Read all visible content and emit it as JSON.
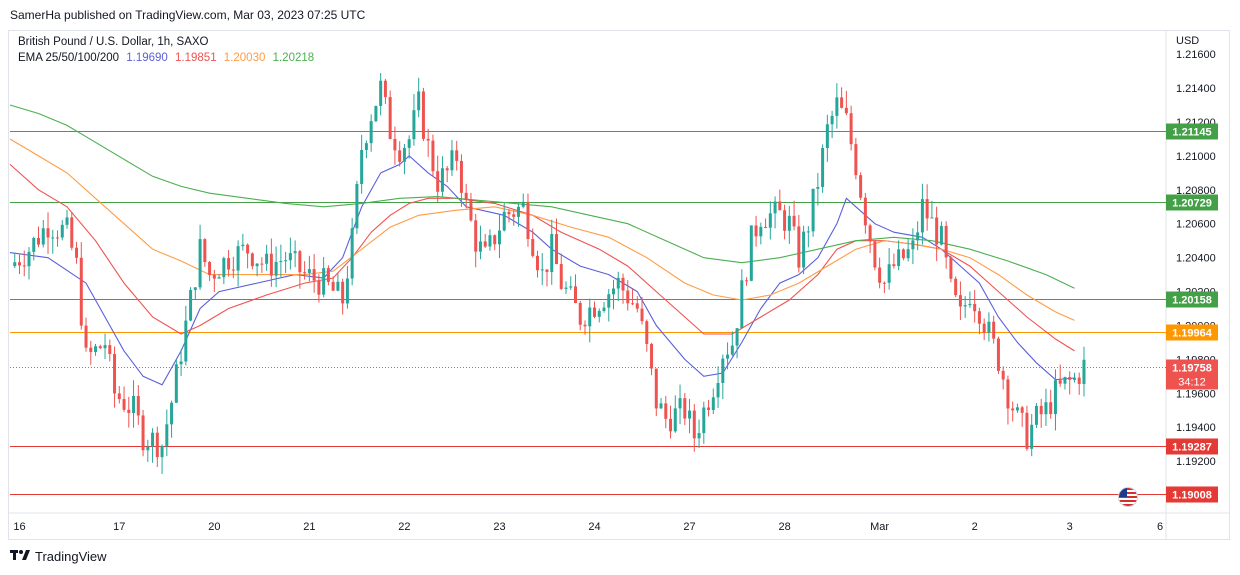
{
  "header": {
    "published": "SamerHa published on TradingView.com, Mar 03, 2023 07:25 UTC"
  },
  "legend": {
    "symbol": "British Pound / U.S. Dollar, 1h, SAXO",
    "ema_label": "EMA 25/50/100/200",
    "ema_values": [
      "1.19690",
      "1.19851",
      "1.20030",
      "1.20218"
    ]
  },
  "colors": {
    "up": "#26a69a",
    "down": "#ef5350",
    "ema25": "#5b5fdc",
    "ema50": "#ef5350",
    "ema100": "#ff9c45",
    "ema200": "#4caf50",
    "line_green": "#43a047",
    "line_orange": "#ff9800",
    "line_red": "#e53935",
    "text": "#131722"
  },
  "axis": {
    "currency": "USD",
    "badge_countdown": "34:12"
  },
  "footer": {
    "brand": "TradingView"
  },
  "chart_data": {
    "type": "candlestick",
    "title": "British Pound / U.S. Dollar, 1h, SAXO",
    "ylim": [
      1.189,
      1.2166
    ],
    "xlim": [
      0,
      121
    ],
    "y_ticks": [
      "1.21600",
      "1.21400",
      "1.21200",
      "1.21000",
      "1.20800",
      "1.20600",
      "1.20400",
      "1.20200",
      "1.20000",
      "1.19800",
      "1.19600",
      "1.19400",
      "1.19200"
    ],
    "x_ticks": [
      {
        "label": "16",
        "x": 1
      },
      {
        "label": "17",
        "x": 11.5
      },
      {
        "label": "20",
        "x": 21.5
      },
      {
        "label": "21",
        "x": 31.5
      },
      {
        "label": "22",
        "x": 41.5
      },
      {
        "label": "23",
        "x": 51.5
      },
      {
        "label": "24",
        "x": 61.5
      },
      {
        "label": "27",
        "x": 71.5
      },
      {
        "label": "28",
        "x": 81.5
      },
      {
        "label": "Mar",
        "x": 91.5
      },
      {
        "label": "2",
        "x": 101.5
      },
      {
        "label": "3",
        "x": 111.5
      },
      {
        "label": "6",
        "x": 121
      }
    ],
    "horizontal_levels": [
      {
        "value": 1.21145,
        "label": "1.21145",
        "color": "line_green"
      },
      {
        "value": 1.20729,
        "label": "1.20729",
        "color": "line_green"
      },
      {
        "value": 1.20158,
        "label": "1.20158",
        "color": "line_green"
      },
      {
        "value": 1.19964,
        "label": "1.19964",
        "color": "line_orange"
      },
      {
        "value": 1.19287,
        "label": "1.19287",
        "color": "line_red"
      },
      {
        "value": 1.19008,
        "label": "1.19008",
        "color": "line_red"
      }
    ],
    "last_price": {
      "value": 1.19758,
      "label": "1.19758"
    },
    "close_path": [
      [
        0,
        1.2035
      ],
      [
        2,
        1.2045
      ],
      [
        4,
        1.206
      ],
      [
        6,
        1.2055
      ],
      [
        7,
        1.2035
      ],
      [
        8,
        1.198
      ],
      [
        10,
        1.199
      ],
      [
        11,
        1.196
      ],
      [
        13,
        1.195
      ],
      [
        14,
        1.1935
      ],
      [
        16,
        1.193
      ],
      [
        17,
        1.1955
      ],
      [
        18,
        1.1985
      ],
      [
        19,
        1.2015
      ],
      [
        20,
        1.2045
      ],
      [
        21,
        1.203
      ],
      [
        23,
        1.204
      ],
      [
        25,
        1.2045
      ],
      [
        27,
        1.2035
      ],
      [
        29,
        1.204
      ],
      [
        31,
        1.203
      ],
      [
        33,
        1.2025
      ],
      [
        35,
        1.2015
      ],
      [
        36,
        1.205
      ],
      [
        37,
        1.2105
      ],
      [
        38,
        1.2125
      ],
      [
        39,
        1.214
      ],
      [
        40,
        1.2115
      ],
      [
        41,
        1.2105
      ],
      [
        42,
        1.211
      ],
      [
        43,
        1.213
      ],
      [
        44,
        1.2105
      ],
      [
        45,
        1.2085
      ],
      [
        46,
        1.209
      ],
      [
        47,
        1.21
      ],
      [
        48,
        1.207
      ],
      [
        49,
        1.205
      ],
      [
        50,
        1.204
      ],
      [
        52,
        1.2065
      ],
      [
        54,
        1.207
      ],
      [
        55,
        1.205
      ],
      [
        56,
        1.203
      ],
      [
        57,
        1.2045
      ],
      [
        58,
        1.2025
      ],
      [
        59,
        1.2015
      ],
      [
        60,
        1.2005
      ],
      [
        62,
        1.2015
      ],
      [
        64,
        1.2025
      ],
      [
        66,
        1.201
      ],
      [
        67,
        1.1985
      ],
      [
        68,
        1.1955
      ],
      [
        69,
        1.1945
      ],
      [
        71,
        1.195
      ],
      [
        72,
        1.1935
      ],
      [
        73,
        1.195
      ],
      [
        74,
        1.1965
      ],
      [
        75,
        1.1985
      ],
      [
        76,
        1.199
      ],
      [
        77,
        1.202
      ],
      [
        78,
        1.205
      ],
      [
        79,
        1.2065
      ],
      [
        81,
        1.2065
      ],
      [
        82,
        1.206
      ],
      [
        83,
        1.204
      ],
      [
        84,
        1.206
      ],
      [
        85,
        1.2085
      ],
      [
        86,
        1.2115
      ],
      [
        87,
        1.213
      ],
      [
        88,
        1.212
      ],
      [
        89,
        1.2095
      ],
      [
        90,
        1.2065
      ],
      [
        91,
        1.204
      ],
      [
        92,
        1.2025
      ],
      [
        93,
        1.2035
      ],
      [
        94,
        1.204
      ],
      [
        95,
        1.2045
      ],
      [
        96,
        1.207
      ],
      [
        97,
        1.206
      ],
      [
        98,
        1.205
      ],
      [
        99,
        1.202
      ],
      [
        100,
        1.2005
      ],
      [
        101,
        1.202
      ],
      [
        102,
        1.201
      ],
      [
        103,
        1.1995
      ],
      [
        104,
        1.198
      ],
      [
        105,
        1.196
      ],
      [
        106,
        1.1945
      ],
      [
        107,
        1.1935
      ],
      [
        108,
        1.1945
      ],
      [
        109,
        1.195
      ],
      [
        110,
        1.196
      ],
      [
        111,
        1.1965
      ],
      [
        112,
        1.1968
      ],
      [
        113,
        1.1976
      ]
    ],
    "series": [
      {
        "name": "EMA 25",
        "color_key": "ema25",
        "points": [
          [
            0,
            1.2043
          ],
          [
            4,
            1.204
          ],
          [
            8,
            1.2025
          ],
          [
            10,
            1.2005
          ],
          [
            12,
            1.1985
          ],
          [
            14,
            1.197
          ],
          [
            16,
            1.1965
          ],
          [
            18,
            1.1985
          ],
          [
            20,
            1.201
          ],
          [
            22,
            1.202
          ],
          [
            26,
            1.2025
          ],
          [
            30,
            1.203
          ],
          [
            33,
            1.2028
          ],
          [
            35,
            1.204
          ],
          [
            37,
            1.207
          ],
          [
            39,
            1.209
          ],
          [
            41,
            1.2095
          ],
          [
            42,
            1.21
          ],
          [
            44,
            1.209
          ],
          [
            46,
            1.2082
          ],
          [
            48,
            1.207
          ],
          [
            52,
            1.2065
          ],
          [
            55,
            1.2055
          ],
          [
            57,
            1.2045
          ],
          [
            60,
            1.2035
          ],
          [
            63,
            1.203
          ],
          [
            66,
            1.202
          ],
          [
            68,
            1.2
          ],
          [
            71,
            1.198
          ],
          [
            73,
            1.197
          ],
          [
            75,
            1.1972
          ],
          [
            77,
            1.199
          ],
          [
            79,
            1.201
          ],
          [
            81,
            1.2025
          ],
          [
            83,
            1.203
          ],
          [
            85,
            1.204
          ],
          [
            87,
            1.206
          ],
          [
            88,
            1.2075
          ],
          [
            89,
            1.207
          ],
          [
            91,
            1.206
          ],
          [
            93,
            1.2055
          ],
          [
            96,
            1.2052
          ],
          [
            98,
            1.2045
          ],
          [
            100,
            1.2035
          ],
          [
            102,
            1.2025
          ],
          [
            104,
            1.2005
          ],
          [
            106,
            1.199
          ],
          [
            108,
            1.1978
          ],
          [
            110,
            1.1968
          ],
          [
            112,
            1.1969
          ]
        ]
      },
      {
        "name": "EMA 50",
        "color_key": "ema50",
        "points": [
          [
            0,
            1.2095
          ],
          [
            3,
            1.208
          ],
          [
            6,
            1.207
          ],
          [
            9,
            1.205
          ],
          [
            12,
            1.2025
          ],
          [
            15,
            1.2005
          ],
          [
            18,
            1.1995
          ],
          [
            20,
            1.2
          ],
          [
            23,
            1.201
          ],
          [
            27,
            1.2018
          ],
          [
            31,
            1.2025
          ],
          [
            34,
            1.2028
          ],
          [
            36,
            1.204
          ],
          [
            38,
            1.2055
          ],
          [
            40,
            1.2065
          ],
          [
            42,
            1.2072
          ],
          [
            44,
            1.2075
          ],
          [
            47,
            1.2075
          ],
          [
            51,
            1.2072
          ],
          [
            55,
            1.2065
          ],
          [
            58,
            1.2055
          ],
          [
            62,
            1.2045
          ],
          [
            65,
            1.2035
          ],
          [
            68,
            1.202
          ],
          [
            71,
            1.2005
          ],
          [
            73,
            1.1995
          ],
          [
            76,
            1.1995
          ],
          [
            79,
            1.2005
          ],
          [
            82,
            1.2015
          ],
          [
            85,
            1.203
          ],
          [
            87,
            1.2045
          ],
          [
            89,
            1.205
          ],
          [
            92,
            1.205
          ],
          [
            95,
            1.2048
          ],
          [
            98,
            1.2045
          ],
          [
            101,
            1.2035
          ],
          [
            104,
            1.202
          ],
          [
            107,
            1.2005
          ],
          [
            110,
            1.1992
          ],
          [
            112,
            1.1985
          ]
        ]
      },
      {
        "name": "EMA 100",
        "color_key": "ema100",
        "points": [
          [
            0,
            1.211
          ],
          [
            3,
            1.21
          ],
          [
            6,
            1.209
          ],
          [
            9,
            1.2075
          ],
          [
            12,
            1.206
          ],
          [
            15,
            1.2045
          ],
          [
            18,
            1.2038
          ],
          [
            21,
            1.203
          ],
          [
            24,
            1.203
          ],
          [
            28,
            1.203
          ],
          [
            31,
            1.203
          ],
          [
            34,
            1.2032
          ],
          [
            37,
            1.2045
          ],
          [
            40,
            1.2058
          ],
          [
            43,
            1.2065
          ],
          [
            47,
            1.2068
          ],
          [
            51,
            1.207
          ],
          [
            55,
            1.2065
          ],
          [
            59,
            1.2058
          ],
          [
            63,
            1.2052
          ],
          [
            67,
            1.204
          ],
          [
            71,
            1.2025
          ],
          [
            74,
            1.2018
          ],
          [
            77,
            1.2015
          ],
          [
            80,
            1.2018
          ],
          [
            83,
            1.2025
          ],
          [
            86,
            1.2035
          ],
          [
            89,
            1.2045
          ],
          [
            92,
            1.205
          ],
          [
            95,
            1.2048
          ],
          [
            98,
            1.2045
          ],
          [
            101,
            1.204
          ],
          [
            104,
            1.203
          ],
          [
            107,
            1.2018
          ],
          [
            110,
            1.2008
          ],
          [
            112,
            1.2003
          ]
        ]
      },
      {
        "name": "EMA 200",
        "color_key": "ema200",
        "points": [
          [
            0,
            1.213
          ],
          [
            3,
            1.2125
          ],
          [
            6,
            1.2118
          ],
          [
            9,
            1.2108
          ],
          [
            12,
            1.2098
          ],
          [
            15,
            1.2088
          ],
          [
            18,
            1.2082
          ],
          [
            21,
            1.2078
          ],
          [
            25,
            1.2075
          ],
          [
            29,
            1.2072
          ],
          [
            33,
            1.207
          ],
          [
            37,
            1.2072
          ],
          [
            41,
            1.2075
          ],
          [
            45,
            1.2076
          ],
          [
            49,
            1.2074
          ],
          [
            53,
            1.2072
          ],
          [
            57,
            1.207
          ],
          [
            61,
            1.2065
          ],
          [
            65,
            1.206
          ],
          [
            69,
            1.205
          ],
          [
            73,
            1.204
          ],
          [
            77,
            1.2037
          ],
          [
            81,
            1.204
          ],
          [
            85,
            1.2045
          ],
          [
            89,
            1.205
          ],
          [
            93,
            1.2052
          ],
          [
            97,
            1.205
          ],
          [
            101,
            1.2045
          ],
          [
            105,
            1.2038
          ],
          [
            109,
            1.203
          ],
          [
            112,
            1.2022
          ]
        ]
      }
    ]
  }
}
